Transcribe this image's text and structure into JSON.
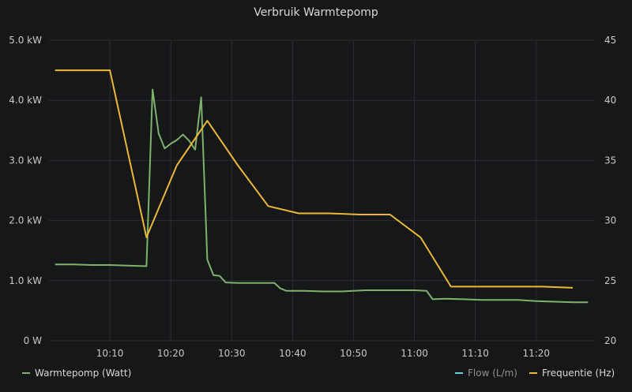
{
  "panel": {
    "title": "Verbruik Warmtepomp"
  },
  "chart_data": {
    "type": "line",
    "title": "Verbruik Warmtepomp",
    "x_ticks": [
      "10:10",
      "10:20",
      "10:30",
      "10:40",
      "10:50",
      "11:00",
      "11:10",
      "11:20"
    ],
    "x_range_minutes": [
      -1,
      88.5
    ],
    "y_left": {
      "ticks": [
        "0 W",
        "1.0 kW",
        "2.0 kW",
        "3.0 kW",
        "4.0 kW",
        "5.0 kW"
      ],
      "range_kw": [
        0,
        5
      ]
    },
    "y_right": {
      "ticks": [
        "20",
        "25",
        "30",
        "35",
        "40",
        "45"
      ],
      "range": [
        20,
        45
      ]
    },
    "grid": true,
    "series": [
      {
        "name": "Warmtepomp (Watt)",
        "color": "#7eb26d",
        "axis": "left",
        "points": [
          [
            0,
            1.27
          ],
          [
            3,
            1.27
          ],
          [
            6,
            1.26
          ],
          [
            9,
            1.26
          ],
          [
            12,
            1.25
          ],
          [
            15,
            1.24
          ],
          [
            16,
            4.18
          ],
          [
            17,
            3.45
          ],
          [
            18,
            3.2
          ],
          [
            19,
            3.28
          ],
          [
            20,
            3.34
          ],
          [
            21,
            3.43
          ],
          [
            22,
            3.33
          ],
          [
            23,
            3.18
          ],
          [
            24,
            4.05
          ],
          [
            25,
            1.35
          ],
          [
            26,
            1.09
          ],
          [
            27,
            1.08
          ],
          [
            28,
            0.97
          ],
          [
            30,
            0.96
          ],
          [
            33,
            0.96
          ],
          [
            36,
            0.96
          ],
          [
            37,
            0.87
          ],
          [
            38,
            0.83
          ],
          [
            41,
            0.83
          ],
          [
            44,
            0.82
          ],
          [
            47,
            0.82
          ],
          [
            51,
            0.84
          ],
          [
            53,
            0.84
          ],
          [
            56,
            0.84
          ],
          [
            59,
            0.84
          ],
          [
            61,
            0.83
          ],
          [
            62,
            0.69
          ],
          [
            64,
            0.7
          ],
          [
            67,
            0.69
          ],
          [
            70,
            0.68
          ],
          [
            73,
            0.68
          ],
          [
            76,
            0.68
          ],
          [
            79,
            0.66
          ],
          [
            82,
            0.65
          ],
          [
            85,
            0.64
          ],
          [
            87.5,
            0.64
          ]
        ]
      },
      {
        "name": "Flow (L/m)",
        "color": "#6ed0e0",
        "axis": "right",
        "points": []
      },
      {
        "name": "Frequentie (Hz)",
        "color": "#eab839",
        "axis": "right",
        "points": [
          [
            0,
            42.5
          ],
          [
            9,
            42.5
          ],
          [
            15,
            28.6
          ],
          [
            20,
            34.6
          ],
          [
            25,
            38.3
          ],
          [
            30,
            34.6
          ],
          [
            35,
            31.2
          ],
          [
            40,
            30.6
          ],
          [
            45,
            30.6
          ],
          [
            50,
            30.5
          ],
          [
            55,
            30.5
          ],
          [
            60,
            28.6
          ],
          [
            65,
            24.5
          ],
          [
            70,
            24.5
          ],
          [
            75,
            24.5
          ],
          [
            80,
            24.5
          ],
          [
            85,
            24.4
          ]
        ]
      }
    ]
  },
  "legend": {
    "warmtepomp": "Warmtepomp (Watt)",
    "flow": "Flow (L/m)",
    "frequentie": "Frequentie (Hz)"
  }
}
